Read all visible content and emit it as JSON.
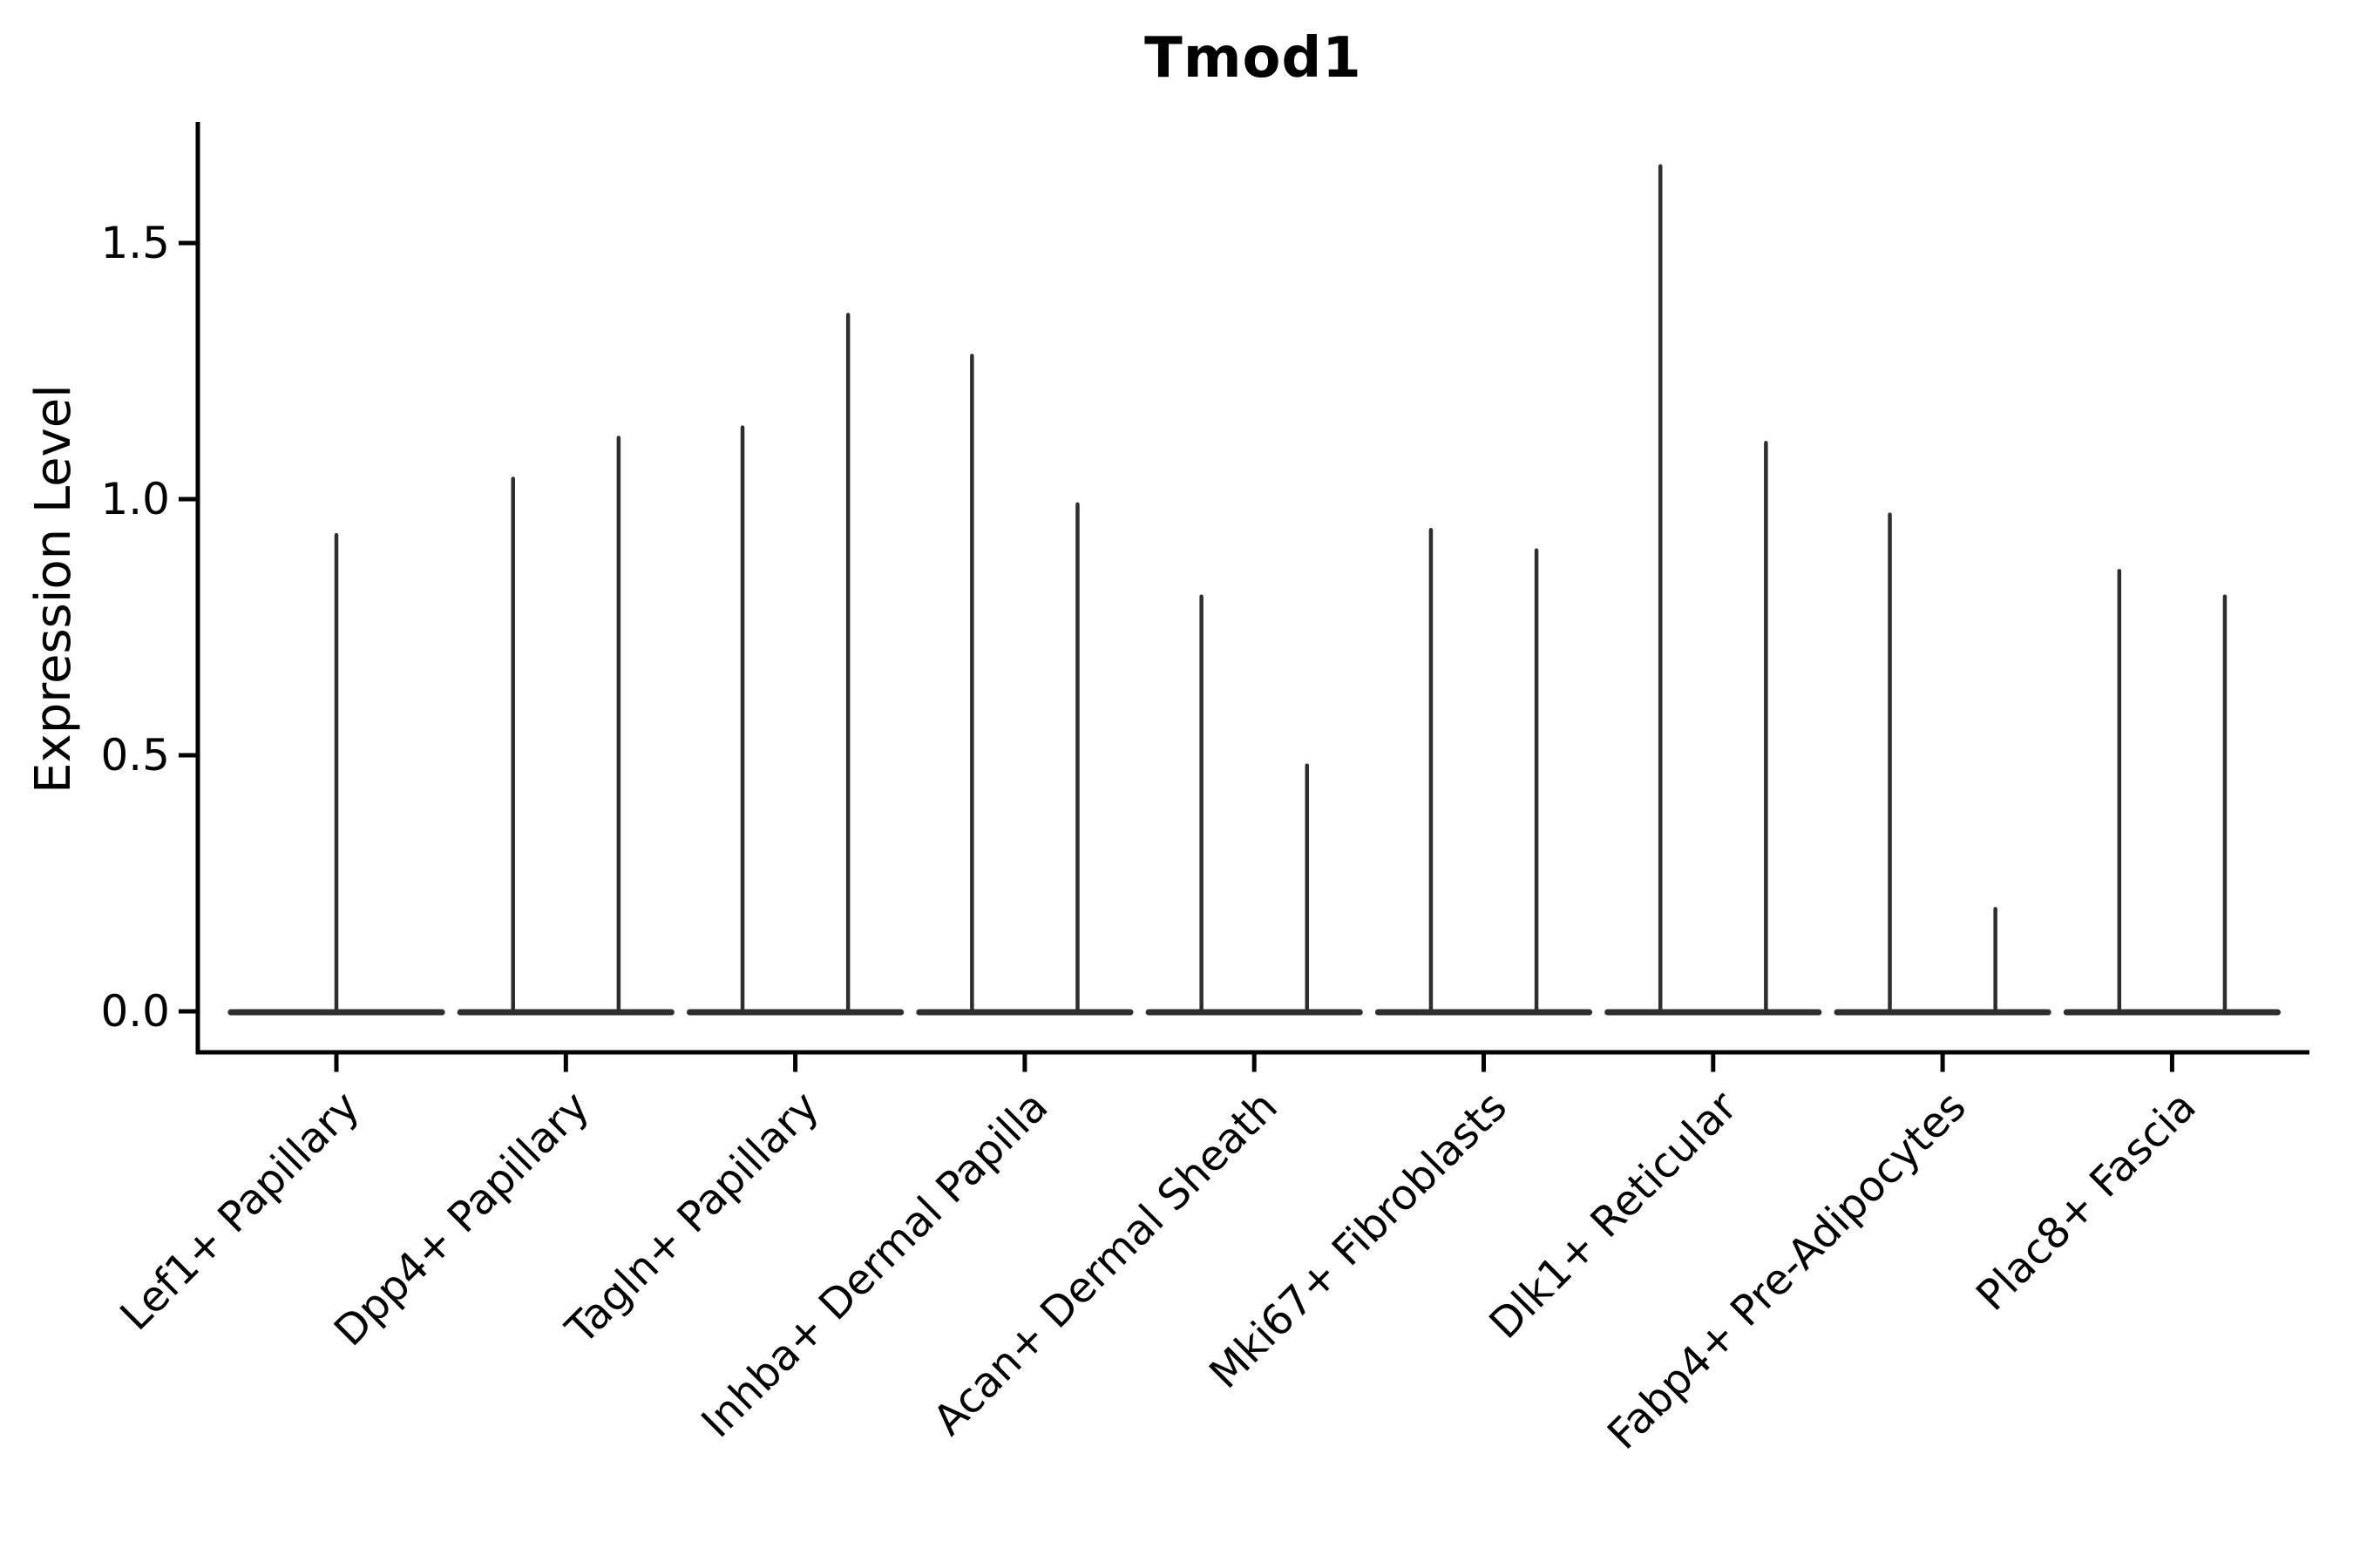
{
  "chart_data": {
    "type": "violin",
    "title": "Tmod1",
    "ylabel": "Expression Level",
    "xlabel": "",
    "legend_position": "none",
    "grid": false,
    "background": "#ffffff",
    "yticks": [
      "0.0",
      "0.5",
      "1.0",
      "1.5"
    ],
    "ytick_values": [
      0.0,
      0.5,
      1.0,
      1.5
    ],
    "ylim": [
      -0.08,
      1.74
    ],
    "categories": [
      "Lef1+ Papillary",
      "Dpp4+ Papillary",
      "Tagln+ Papillary",
      "Inhba+ Dermal Papilla",
      "Acan+ Dermal Sheath",
      "Mki67+ Fibroblasts",
      "Dlk1+ Reticular",
      "Fabp4+ Pre-Adipocytes",
      "Plac8+ Fascia"
    ],
    "series": [
      {
        "category": "Lef1+ Papillary",
        "violins": [
          {
            "offset": 0.0,
            "max_expression": 0.93
          }
        ]
      },
      {
        "category": "Dpp4+ Papillary",
        "violins": [
          {
            "offset": -0.23,
            "max_expression": 1.04
          },
          {
            "offset": 0.23,
            "max_expression": 1.12
          }
        ]
      },
      {
        "category": "Tagln+ Papillary",
        "violins": [
          {
            "offset": -0.23,
            "max_expression": 1.14
          },
          {
            "offset": 0.23,
            "max_expression": 1.36
          }
        ]
      },
      {
        "category": "Inhba+ Dermal Papilla",
        "violins": [
          {
            "offset": -0.23,
            "max_expression": 1.28
          },
          {
            "offset": 0.23,
            "max_expression": 0.99
          }
        ]
      },
      {
        "category": "Acan+ Dermal Sheath",
        "violins": [
          {
            "offset": -0.23,
            "max_expression": 0.81
          },
          {
            "offset": 0.23,
            "max_expression": 0.48
          }
        ]
      },
      {
        "category": "Mki67+ Fibroblasts",
        "violins": [
          {
            "offset": -0.23,
            "max_expression": 0.94
          },
          {
            "offset": 0.23,
            "max_expression": 0.9
          }
        ]
      },
      {
        "category": "Dlk1+ Reticular",
        "violins": [
          {
            "offset": -0.23,
            "max_expression": 1.65
          },
          {
            "offset": 0.23,
            "max_expression": 1.11
          }
        ]
      },
      {
        "category": "Fabp4+ Pre-Adipocytes",
        "violins": [
          {
            "offset": -0.23,
            "max_expression": 0.97
          },
          {
            "offset": 0.23,
            "max_expression": 0.2
          }
        ]
      },
      {
        "category": "Plac8+ Fascia",
        "violins": [
          {
            "offset": -0.23,
            "max_expression": 0.86
          },
          {
            "offset": 0.23,
            "max_expression": 0.81
          }
        ]
      }
    ],
    "violin_base_halfwidth": 0.46,
    "colors": {
      "violin_line": "#2e2e2e",
      "axis": "#000000",
      "text": "#000000",
      "background": "#ffffff"
    }
  }
}
